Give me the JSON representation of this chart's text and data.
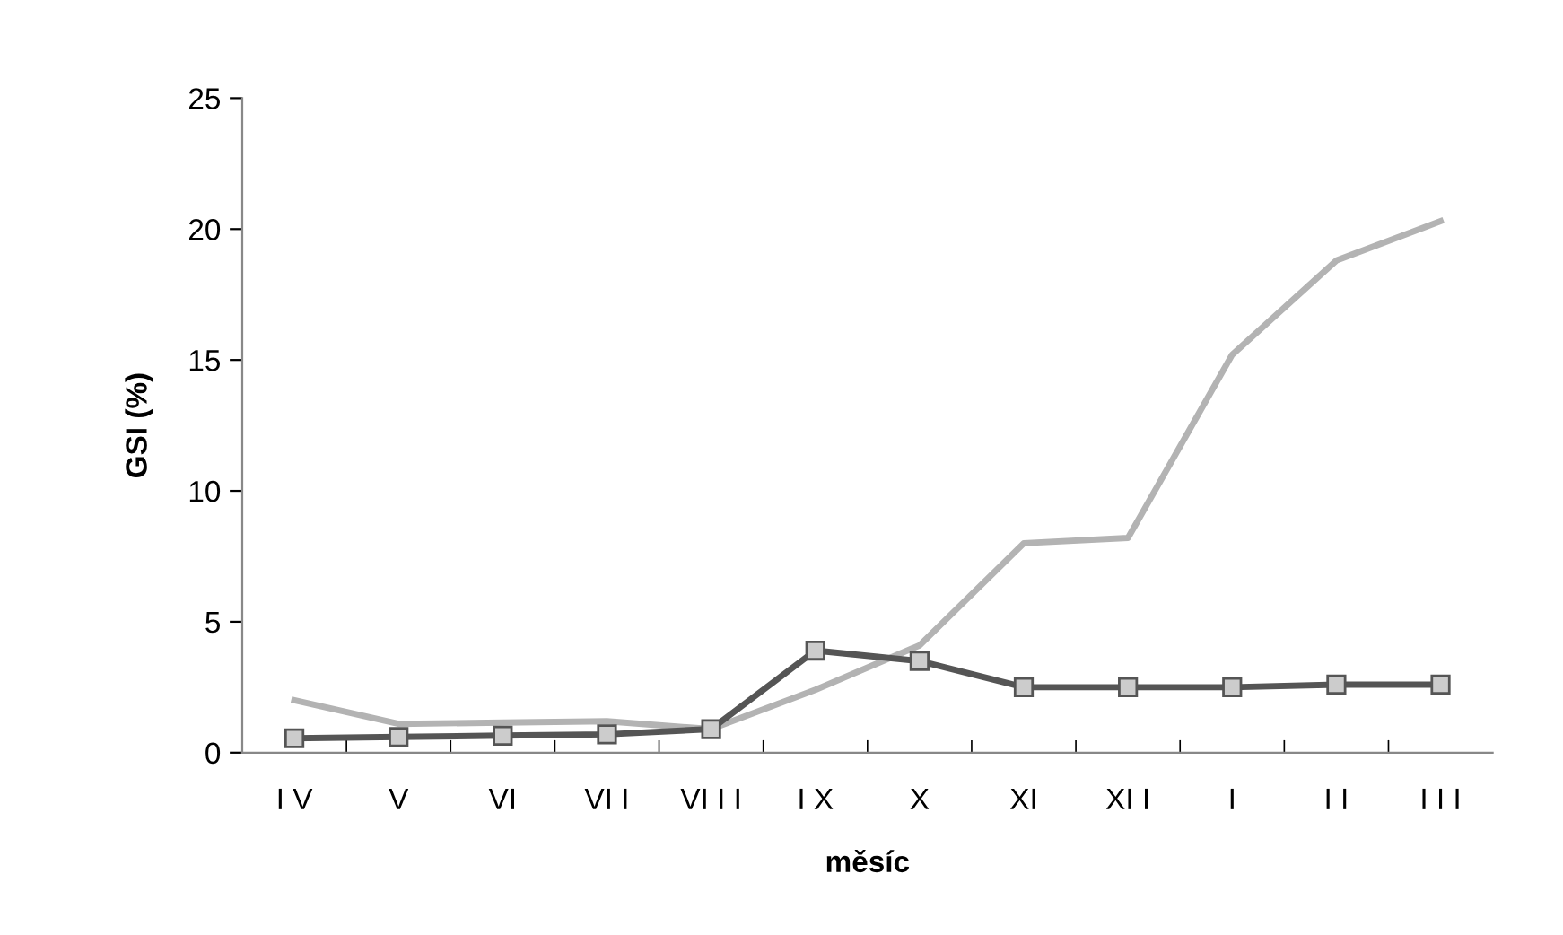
{
  "chart_data": {
    "type": "line",
    "xlabel": "měsíc",
    "ylabel": "GSI (%)",
    "categories": [
      "I V",
      "V",
      "VI",
      "VI I",
      "VI I I",
      "I X",
      "X",
      "XI",
      "XI I",
      "I",
      "I I",
      "I I I"
    ],
    "series": [
      {
        "color": "#b3b3b3",
        "marker": "none",
        "values": [
          2.0,
          1.1,
          1.15,
          1.2,
          0.9,
          2.4,
          4.1,
          8.0,
          8.2,
          15.2,
          18.8,
          20.3
        ]
      },
      {
        "color": "#555555",
        "marker": "square",
        "values": [
          0.55,
          0.6,
          0.65,
          0.7,
          0.9,
          3.9,
          3.5,
          2.5,
          2.5,
          2.5,
          2.6,
          2.6
        ]
      }
    ],
    "ylim": [
      0,
      25
    ],
    "yticks": [
      0,
      5,
      10,
      15,
      20,
      25
    ],
    "grid": false,
    "legend": false,
    "line_style": "solid"
  }
}
